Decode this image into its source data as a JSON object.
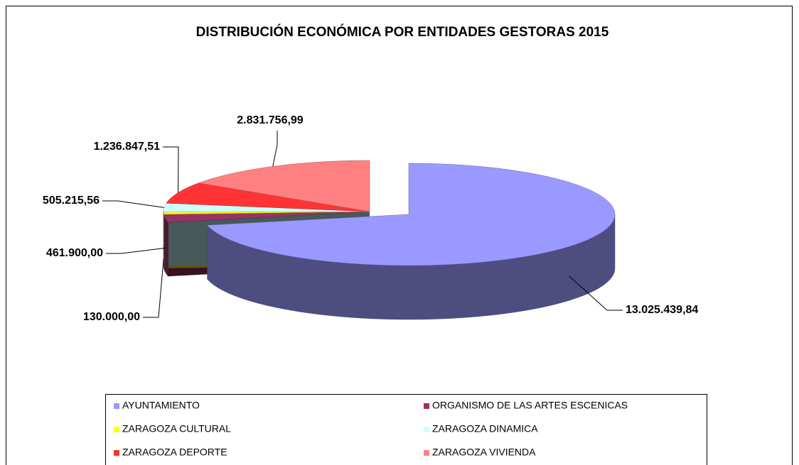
{
  "chart_data": {
    "type": "pie3d",
    "title": "DISTRIBUCIÓN ECONÓMICA POR ENTIDADES GESTORAS 2015",
    "categories": [
      "AYUNTAMIENTO",
      "ORGANISMO DE LAS ARTES ESCENICAS",
      "ZARAGOZA CULTURAL",
      "ZARAGOZA DINAMICA",
      "ZARAGOZA DEPORTE",
      "ZARAGOZA VIVIENDA"
    ],
    "values": [
      13025439.84,
      461900,
      130000,
      505215.56,
      1236847.51,
      2831756.99
    ],
    "value_labels": [
      "13.025.439,84",
      "461.900,00",
      "130.000,00",
      "505.215,56",
      "1.236.847,51",
      "2.831.756,99"
    ],
    "colors": [
      "#9999ff",
      "#993366",
      "#ffff00",
      "#ccffff",
      "#ff3333",
      "#ff8080"
    ]
  }
}
